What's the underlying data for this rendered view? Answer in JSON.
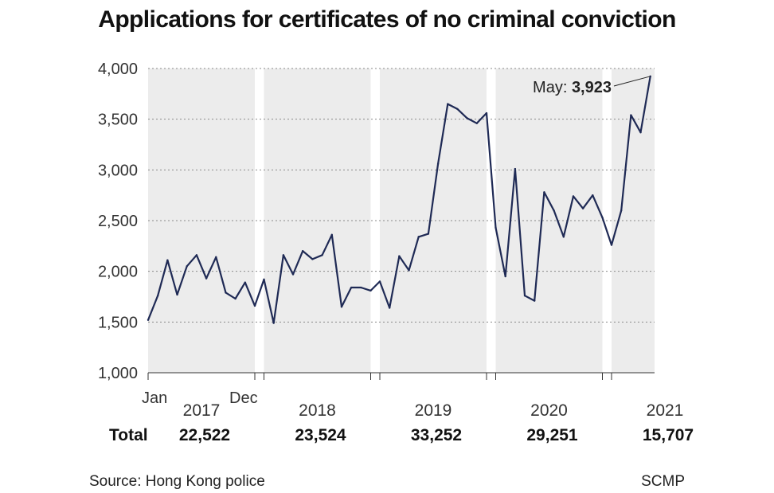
{
  "title": "Applications for certificates of no criminal conviction",
  "source": "Source: Hong Kong police",
  "credit": "SCMP",
  "total_label": "Total",
  "annotation": {
    "prefix": "May: ",
    "value": "3,923"
  },
  "start_label": "Jan",
  "end_label": "Dec",
  "chart_data": {
    "type": "line",
    "title": "Applications for certificates of no criminal conviction",
    "xlabel": "",
    "ylabel": "",
    "ylim": [
      1000,
      4000
    ],
    "yticks": [
      "1,000",
      "1,500",
      "2,000",
      "2,500",
      "3,000",
      "3,500",
      "4,000"
    ],
    "ytick_values": [
      1000,
      1500,
      2000,
      2500,
      3000,
      3500,
      4000
    ],
    "grid": true,
    "line_color": "#1f2a55",
    "band_color": "#ececec",
    "years": [
      {
        "year": "2017",
        "total": "22,522",
        "values": [
          1520,
          1760,
          2110,
          1770,
          2050,
          2160,
          1930,
          2140,
          1790,
          1730,
          1890,
          1660
        ]
      },
      {
        "year": "2018",
        "total": "23,524",
        "values": [
          1920,
          1490,
          2160,
          1970,
          2200,
          2120,
          2160,
          2360,
          1650,
          1840,
          1840,
          1810
        ]
      },
      {
        "year": "2019",
        "total": "33,252",
        "values": [
          1900,
          1640,
          2150,
          2010,
          2340,
          2370,
          3060,
          3650,
          3600,
          3510,
          3460,
          3560
        ]
      },
      {
        "year": "2020",
        "total": "29,251",
        "values": [
          2430,
          1950,
          3010,
          1760,
          1710,
          2780,
          2600,
          2340,
          2740,
          2620,
          2750,
          2530
        ]
      },
      {
        "year": "2021",
        "total": "15,707",
        "values": [
          2260,
          2600,
          3540,
          3370,
          3923
        ]
      }
    ]
  }
}
